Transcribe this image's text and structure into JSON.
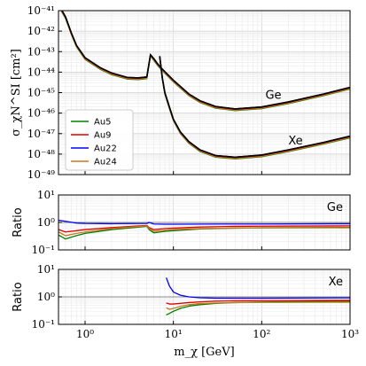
{
  "chart_data": [
    {
      "type": "line",
      "panel": "cross-section",
      "ylabel": "σ_χN^SI [cm²]",
      "xlabel": "",
      "xscale": "log",
      "yscale": "log",
      "xlim": [
        0.5,
        1000
      ],
      "ylim": [
        1e-49,
        1e-41
      ],
      "grid": true,
      "y_ticks": [
        "10⁻⁴¹",
        "10⁻⁴²",
        "10⁻⁴³",
        "10⁻⁴⁴",
        "10⁻⁴⁵",
        "10⁻⁴⁶",
        "10⁻⁴⁷",
        "10⁻⁴⁸",
        "10⁻⁴⁹"
      ],
      "legend": {
        "placement": "bottom-left",
        "entries": [
          "Au5",
          "Au9",
          "Au22",
          "Au24"
        ]
      },
      "annotations": [
        {
          "text": "Ge",
          "x": 110,
          "y": 5e-46
        },
        {
          "text": "Xe",
          "x": 200,
          "y": 3e-48
        }
      ],
      "series": [
        {
          "name": "",
          "target": "Ge",
          "color": "#000000",
          "x": [
            0.5,
            0.6,
            0.7,
            0.8,
            1,
            1.5,
            2,
            3,
            4,
            5,
            5.5,
            6,
            6.5,
            7,
            7.5,
            8,
            10,
            15,
            20,
            30,
            50,
            100,
            200,
            500,
            1000
          ],
          "y": [
            2e-41,
            5e-42,
            8e-43,
            2e-43,
            5e-44,
            1.6e-44,
            9e-45,
            5.5e-45,
            5.2e-45,
            5.8e-45,
            7e-44,
            4.5e-44,
            2.8e-44,
            1.9e-44,
            1.4e-44,
            1.05e-44,
            4e-45,
            8.5e-46,
            4e-46,
            2.1e-46,
            1.6e-46,
            2e-46,
            3.5e-46,
            8.5e-46,
            1.8e-45
          ]
        },
        {
          "name": "",
          "target": "Xe",
          "color": "#000000",
          "x": [
            7,
            7.5,
            8,
            9,
            10,
            12,
            15,
            20,
            30,
            50,
            100,
            200,
            500,
            1000
          ],
          "y": [
            6e-44,
            5e-45,
            1e-45,
            2e-46,
            5e-47,
            1.2e-47,
            4e-48,
            1.6e-48,
            8.5e-49,
            7e-49,
            9e-49,
            1.6e-48,
            3.7e-48,
            7.5e-48
          ]
        }
      ]
    },
    {
      "type": "line",
      "panel": "ratio-ge",
      "ylabel": "Ratio",
      "xscale": "log",
      "yscale": "log",
      "xlim": [
        0.5,
        1000
      ],
      "ylim": [
        0.1,
        10
      ],
      "y_ticks": [
        "10¹",
        "10⁰",
        "10⁻¹"
      ],
      "annotation": "Ge",
      "reference_line": 1,
      "series": [
        {
          "name": "Au5",
          "color": "#008000",
          "values_note": "",
          "x": [
            0.5,
            0.6,
            0.8,
            1,
            2,
            5,
            5.3,
            6,
            8,
            10,
            20,
            50,
            100,
            1000
          ],
          "y": [
            0.35,
            0.25,
            0.33,
            0.4,
            0.55,
            0.72,
            0.55,
            0.42,
            0.47,
            0.5,
            0.58,
            0.62,
            0.64,
            0.66
          ]
        },
        {
          "name": "Au9",
          "color": "#e00000",
          "x": [
            0.5,
            0.6,
            0.8,
            1,
            2,
            5,
            5.3,
            6,
            8,
            10,
            20,
            50,
            100,
            1000
          ],
          "y": [
            0.55,
            0.45,
            0.5,
            0.55,
            0.65,
            0.78,
            0.65,
            0.55,
            0.6,
            0.62,
            0.68,
            0.72,
            0.73,
            0.75
          ]
        },
        {
          "name": "Au22",
          "color": "#0000ff",
          "x": [
            0.5,
            0.6,
            0.8,
            1,
            2,
            5,
            5.3,
            6,
            8,
            10,
            20,
            50,
            100,
            1000
          ],
          "y": [
            1.2,
            1.1,
            0.95,
            0.92,
            0.9,
            0.92,
            1.0,
            0.88,
            0.86,
            0.86,
            0.87,
            0.88,
            0.88,
            0.9
          ]
        },
        {
          "name": "Au24",
          "color": "#c87820",
          "x": [
            0.5,
            0.6,
            0.8,
            1,
            2,
            5,
            5.3,
            6,
            8,
            10,
            20,
            50,
            100,
            1000
          ],
          "y": [
            0.45,
            0.33,
            0.4,
            0.45,
            0.6,
            0.75,
            0.6,
            0.48,
            0.52,
            0.55,
            0.6,
            0.62,
            0.63,
            0.64
          ]
        }
      ]
    },
    {
      "type": "line",
      "panel": "ratio-xe",
      "ylabel": "Ratio",
      "xlabel": "m_χ [GeV]",
      "xscale": "log",
      "yscale": "log",
      "xlim": [
        0.5,
        1000
      ],
      "ylim": [
        0.1,
        10
      ],
      "x_ticks": [
        "10⁰",
        "10¹",
        "10²",
        "10³"
      ],
      "y_ticks": [
        "10¹",
        "10⁰",
        "10⁻¹"
      ],
      "annotation": "Xe",
      "reference_line": 1,
      "series": [
        {
          "name": "Au5",
          "color": "#008000",
          "x": [
            8.3,
            9,
            10,
            12,
            15,
            20,
            30,
            50,
            100,
            1000
          ],
          "y": [
            0.22,
            0.25,
            0.3,
            0.38,
            0.46,
            0.52,
            0.58,
            0.62,
            0.65,
            0.7
          ]
        },
        {
          "name": "Au9",
          "color": "#e00000",
          "x": [
            8.3,
            9,
            10,
            12,
            15,
            20,
            30,
            50,
            100,
            1000
          ],
          "y": [
            0.6,
            0.55,
            0.55,
            0.58,
            0.62,
            0.66,
            0.7,
            0.72,
            0.73,
            0.75
          ]
        },
        {
          "name": "Au22",
          "color": "#0000ff",
          "x": [
            8.3,
            9,
            10,
            12,
            15,
            20,
            30,
            50,
            100,
            1000
          ],
          "y": [
            5,
            2.5,
            1.5,
            1.15,
            1.0,
            0.93,
            0.9,
            0.9,
            0.9,
            0.92
          ]
        },
        {
          "name": "Au24",
          "color": "#c87820",
          "x": [
            8.3,
            9,
            10,
            12,
            15,
            20,
            30,
            50,
            100,
            1000
          ],
          "y": [
            0.4,
            0.35,
            0.38,
            0.45,
            0.52,
            0.57,
            0.6,
            0.62,
            0.63,
            0.64
          ]
        }
      ]
    }
  ]
}
